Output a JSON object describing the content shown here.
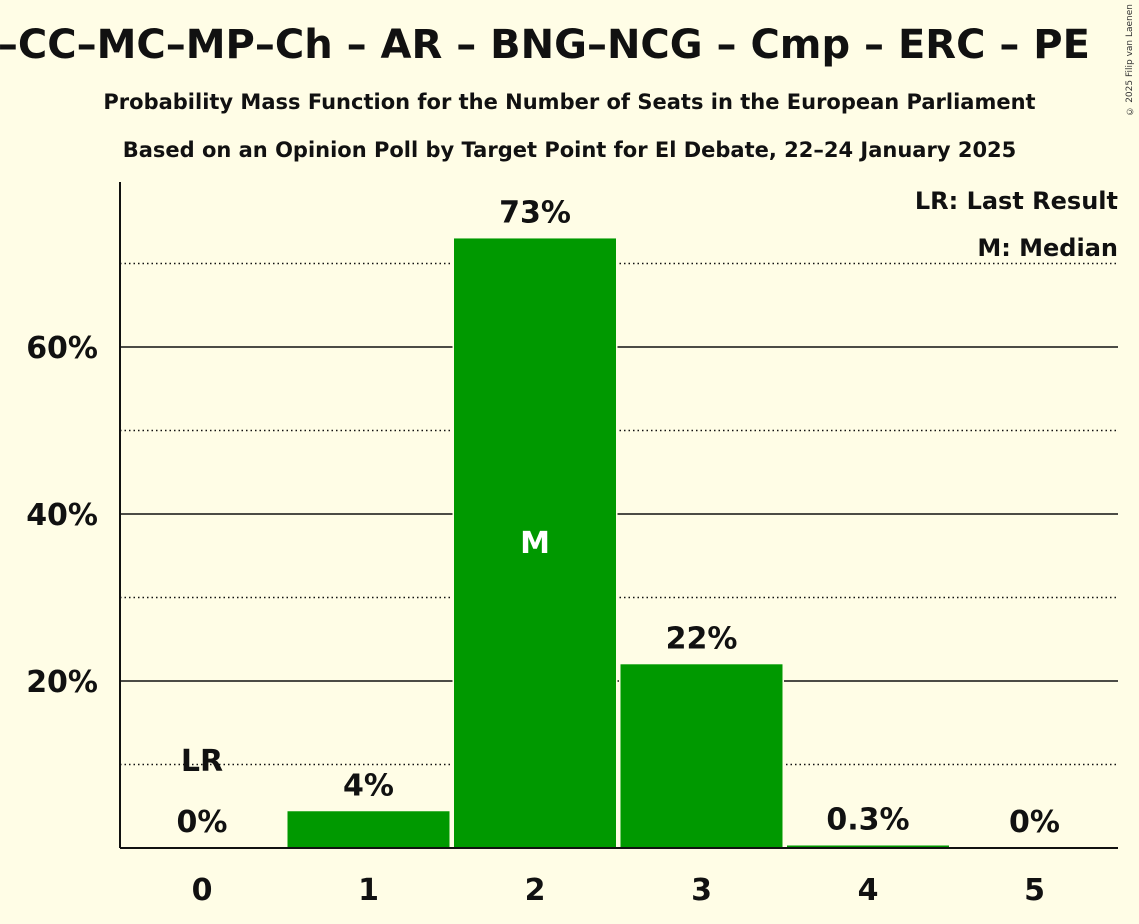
{
  "title": "S–CC–MC–MP–Ch – AR – BNG–NCG – Cmp – ERC – PE",
  "subtitle1": "Probability Mass Function for the Number of Seats in the European Parliament",
  "subtitle2": "Based on an Opinion Poll by Target Point for El Debate, 22–24 January 2025",
  "copyright": "© 2025 Filip van Laenen",
  "legend": {
    "lr": "LR: Last Result",
    "m": "M: Median"
  },
  "colors": {
    "bar": "#009900",
    "background": "#fffde6"
  },
  "chart_data": {
    "type": "bar",
    "categories": [
      "0",
      "1",
      "2",
      "3",
      "4",
      "5"
    ],
    "values": [
      0,
      4.4,
      73,
      22,
      0.3,
      0
    ],
    "labels": [
      "0%",
      "4%",
      "73%",
      "22%",
      "0.3%",
      "0%"
    ],
    "ylim": [
      0,
      80
    ],
    "yticks": [
      20,
      40,
      60
    ],
    "yticklabels": [
      "20%",
      "40%",
      "60%"
    ],
    "minor_gridlines": [
      10,
      30,
      50,
      70
    ],
    "last_result_index": 0,
    "last_result_label": "LR",
    "median_index": 2,
    "median_label": "M"
  }
}
